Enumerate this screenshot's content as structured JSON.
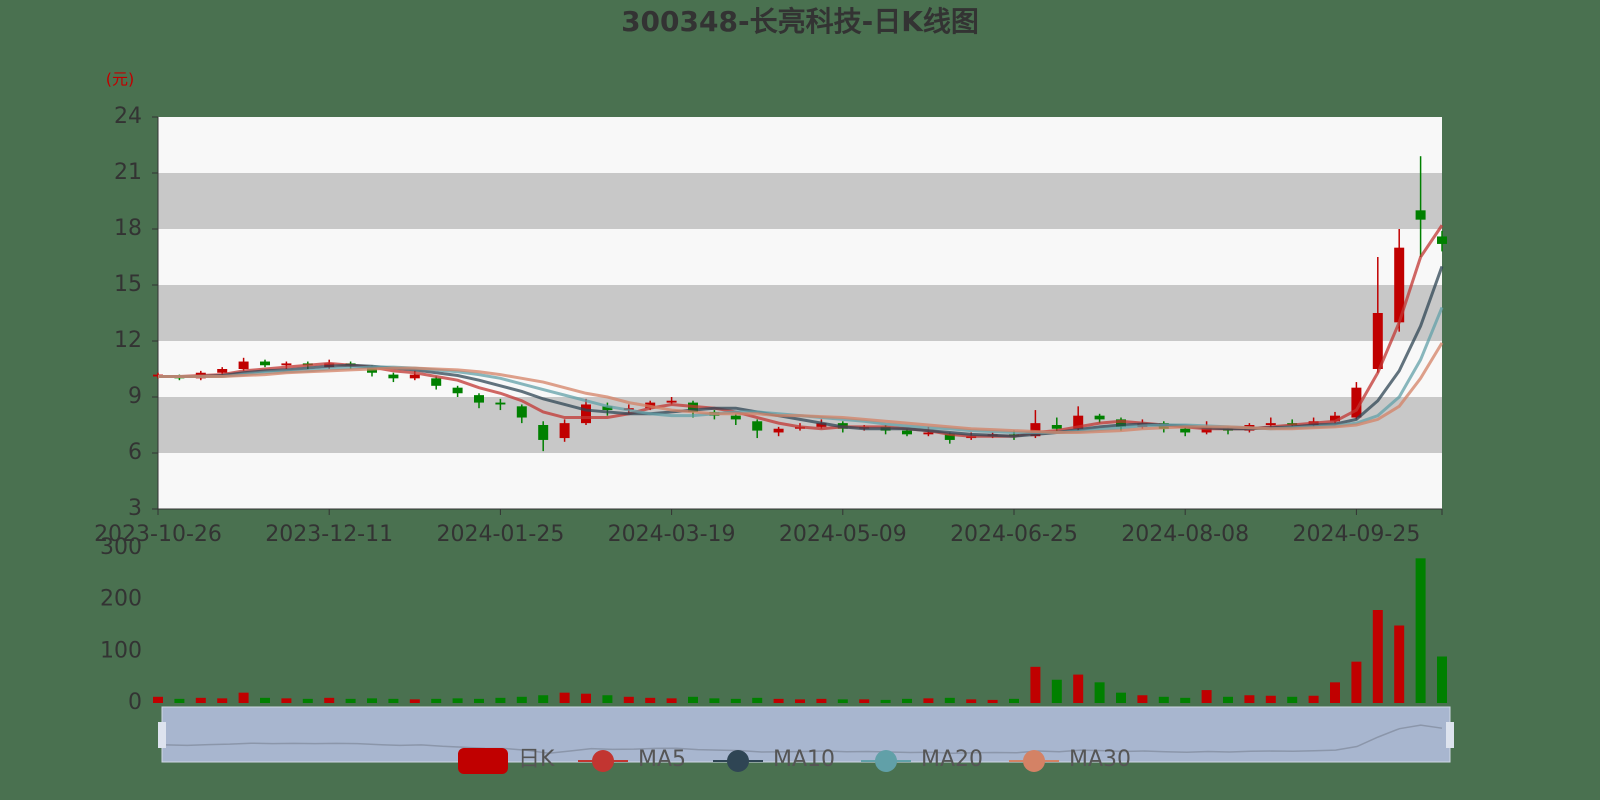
{
  "chart_data": {
    "type": "candlestick",
    "title": "300348-长亮科技-日K线图",
    "y_unit": "(元)",
    "candle_name": "日K",
    "up_color": "#c00000",
    "down_color": "#008000",
    "split_area_colors": [
      "#f8f8f8",
      "#c8c8c8"
    ],
    "categories": [
      "2023-10-26",
      null,
      null,
      null,
      null,
      null,
      null,
      null,
      "2023-12-11",
      null,
      null,
      null,
      null,
      null,
      null,
      null,
      "2024-01-25",
      null,
      null,
      null,
      null,
      null,
      null,
      null,
      "2024-03-19",
      null,
      null,
      null,
      null,
      null,
      null,
      null,
      "2024-05-09",
      null,
      null,
      null,
      null,
      null,
      null,
      null,
      "2024-06-25",
      null,
      null,
      null,
      null,
      null,
      null,
      null,
      "2024-08-08",
      null,
      null,
      null,
      null,
      null,
      null,
      null,
      "2024-09-25",
      null,
      null,
      null,
      null
    ],
    "open": [
      10.1,
      10.1,
      10.0,
      10.3,
      10.5,
      10.9,
      10.7,
      10.8,
      10.6,
      10.8,
      10.6,
      10.2,
      10.0,
      10.0,
      9.5,
      9.1,
      8.7,
      8.5,
      7.5,
      6.8,
      7.6,
      8.5,
      8.3,
      8.4,
      8.7,
      8.7,
      8.2,
      8.0,
      7.7,
      7.1,
      7.3,
      7.4,
      7.6,
      7.3,
      7.4,
      7.2,
      7.0,
      7.0,
      6.8,
      6.9,
      7.0,
      6.9,
      7.5,
      7.3,
      8.0,
      7.8,
      7.4,
      7.6,
      7.3,
      7.1,
      7.3,
      7.2,
      7.5,
      7.6,
      7.5,
      7.7,
      7.9,
      10.5,
      13.0,
      19.0,
      17.6
    ],
    "close": [
      10.2,
      10.0,
      10.3,
      10.5,
      10.9,
      10.7,
      10.8,
      10.7,
      10.8,
      10.7,
      10.3,
      10.0,
      10.2,
      9.6,
      9.2,
      8.7,
      8.6,
      7.9,
      6.7,
      7.6,
      8.6,
      8.3,
      8.4,
      8.7,
      8.8,
      8.2,
      8.0,
      7.8,
      7.2,
      7.3,
      7.4,
      7.6,
      7.3,
      7.4,
      7.2,
      7.0,
      7.1,
      6.7,
      6.9,
      7.0,
      6.9,
      7.6,
      7.3,
      8.0,
      7.8,
      7.4,
      7.6,
      7.3,
      7.1,
      7.4,
      7.2,
      7.5,
      7.6,
      7.5,
      7.7,
      8.0,
      9.5,
      13.5,
      17.0,
      18.5,
      17.2
    ],
    "high": [
      10.3,
      10.2,
      10.4,
      10.6,
      11.1,
      11.0,
      10.9,
      10.9,
      11.0,
      10.9,
      10.7,
      10.3,
      10.4,
      10.1,
      9.6,
      9.2,
      8.9,
      8.6,
      7.7,
      7.8,
      8.9,
      8.7,
      8.6,
      8.8,
      9.0,
      8.8,
      8.3,
      8.1,
      7.8,
      7.4,
      7.6,
      7.8,
      7.7,
      7.5,
      7.5,
      7.3,
      7.4,
      7.1,
      7.1,
      7.1,
      7.2,
      8.3,
      7.9,
      8.5,
      8.1,
      7.9,
      7.8,
      7.7,
      7.4,
      7.7,
      7.4,
      7.6,
      7.9,
      7.8,
      7.9,
      8.2,
      9.8,
      16.5,
      18.0,
      21.9,
      17.9
    ],
    "low": [
      10.0,
      9.9,
      9.9,
      10.2,
      10.4,
      10.6,
      10.5,
      10.5,
      10.5,
      10.5,
      10.1,
      9.8,
      9.9,
      9.4,
      9.0,
      8.4,
      8.3,
      7.6,
      6.1,
      6.6,
      7.5,
      8.0,
      8.1,
      8.3,
      8.6,
      7.9,
      7.8,
      7.5,
      6.8,
      6.9,
      7.2,
      7.3,
      7.1,
      7.2,
      7.0,
      6.9,
      6.9,
      6.5,
      6.7,
      6.8,
      6.7,
      6.8,
      7.1,
      7.2,
      7.6,
      7.2,
      7.3,
      7.1,
      6.9,
      7.0,
      7.0,
      7.1,
      7.4,
      7.4,
      7.4,
      7.6,
      7.8,
      10.3,
      12.5,
      16.5,
      16.8
    ],
    "volume": [
      12,
      8,
      10,
      9,
      20,
      10,
      9,
      8,
      10,
      8,
      9,
      8,
      7,
      8,
      9,
      8,
      10,
      12,
      15,
      20,
      18,
      15,
      12,
      10,
      9,
      12,
      9,
      8,
      10,
      8,
      7,
      8,
      7,
      7,
      6,
      8,
      9,
      10,
      7,
      6,
      8,
      70,
      45,
      55,
      40,
      20,
      15,
      12,
      10,
      25,
      12,
      15,
      14,
      12,
      14,
      40,
      80,
      180,
      150,
      280,
      90
    ],
    "series": [
      {
        "name": "MA5",
        "color": "#c23531",
        "values": [
          10.1,
          10.1,
          10.15,
          10.2,
          10.4,
          10.5,
          10.6,
          10.7,
          10.8,
          10.7,
          10.6,
          10.4,
          10.3,
          10.1,
          9.9,
          9.5,
          9.2,
          8.8,
          8.2,
          7.9,
          7.9,
          7.9,
          8.1,
          8.4,
          8.6,
          8.5,
          8.4,
          8.2,
          7.9,
          7.6,
          7.4,
          7.3,
          7.4,
          7.4,
          7.4,
          7.3,
          7.2,
          7.0,
          6.9,
          6.9,
          6.9,
          7.1,
          7.2,
          7.4,
          7.6,
          7.7,
          7.6,
          7.5,
          7.4,
          7.3,
          7.3,
          7.3,
          7.4,
          7.5,
          7.6,
          7.7,
          8.3,
          10.3,
          13.0,
          16.5,
          18.2
        ]
      },
      {
        "name": "MA10",
        "color": "#2f4554",
        "values": [
          10.1,
          10.1,
          10.1,
          10.15,
          10.3,
          10.4,
          10.45,
          10.55,
          10.65,
          10.7,
          10.65,
          10.55,
          10.45,
          10.3,
          10.15,
          9.9,
          9.6,
          9.3,
          8.9,
          8.6,
          8.3,
          8.2,
          8.1,
          8.1,
          8.2,
          8.3,
          8.4,
          8.4,
          8.2,
          8.0,
          7.8,
          7.6,
          7.4,
          7.3,
          7.3,
          7.3,
          7.2,
          7.1,
          7.0,
          6.95,
          6.9,
          7.0,
          7.1,
          7.25,
          7.4,
          7.5,
          7.55,
          7.5,
          7.45,
          7.35,
          7.3,
          7.3,
          7.35,
          7.4,
          7.5,
          7.55,
          7.8,
          8.8,
          10.4,
          12.8,
          16.0
        ]
      },
      {
        "name": "MA20",
        "color": "#61a0a8",
        "values": [
          10.1,
          10.1,
          10.1,
          10.1,
          10.2,
          10.3,
          10.35,
          10.4,
          10.5,
          10.55,
          10.6,
          10.6,
          10.55,
          10.45,
          10.35,
          10.2,
          10.0,
          9.7,
          9.4,
          9.1,
          8.8,
          8.5,
          8.3,
          8.1,
          8.0,
          8.0,
          8.1,
          8.2,
          8.2,
          8.1,
          8.0,
          7.9,
          7.8,
          7.7,
          7.55,
          7.45,
          7.35,
          7.3,
          7.2,
          7.15,
          7.1,
          7.1,
          7.1,
          7.15,
          7.25,
          7.35,
          7.45,
          7.5,
          7.5,
          7.45,
          7.4,
          7.35,
          7.3,
          7.35,
          7.4,
          7.45,
          7.6,
          8.0,
          9.0,
          11.0,
          13.8
        ]
      },
      {
        "name": "MA30",
        "color": "#d48265",
        "values": [
          10.1,
          10.1,
          10.1,
          10.1,
          10.15,
          10.2,
          10.3,
          10.35,
          10.4,
          10.45,
          10.5,
          10.55,
          10.55,
          10.5,
          10.45,
          10.35,
          10.2,
          10.0,
          9.8,
          9.5,
          9.2,
          9.0,
          8.7,
          8.5,
          8.3,
          8.2,
          8.1,
          8.1,
          8.1,
          8.0,
          8.0,
          7.95,
          7.9,
          7.8,
          7.7,
          7.6,
          7.5,
          7.4,
          7.3,
          7.25,
          7.2,
          7.15,
          7.1,
          7.1,
          7.15,
          7.2,
          7.3,
          7.35,
          7.4,
          7.4,
          7.4,
          7.35,
          7.3,
          7.3,
          7.35,
          7.4,
          7.5,
          7.8,
          8.5,
          10.0,
          11.9
        ]
      }
    ],
    "ylim": [
      3,
      24
    ],
    "yticks": [
      3,
      6,
      9,
      12,
      15,
      18,
      21,
      24
    ],
    "volume_ylim": [
      0,
      300
    ],
    "volume_yticks": [
      0,
      100,
      200,
      300
    ]
  }
}
